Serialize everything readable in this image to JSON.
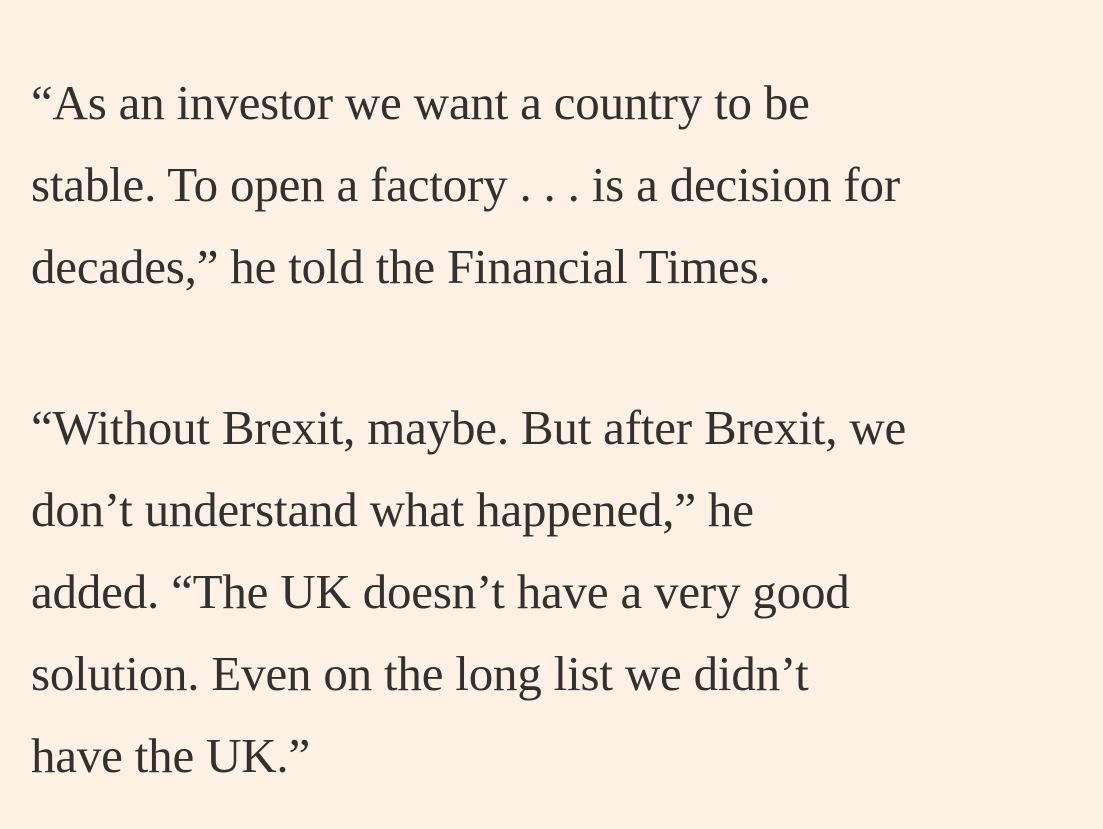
{
  "article": {
    "paragraphs": [
      {
        "lines": [
          "“As an investor we want a country to be",
          "stable. To open a factory . . . is a decision for",
          "decades,” he told the Financial Times."
        ]
      },
      {
        "lines": [
          "“Without Brexit, maybe. But after Brexit, we",
          "don’t understand what happened,” he",
          "added. “The UK doesn’t have a very good",
          "solution. Even on the long list we didn’t",
          "have the UK.”"
        ]
      }
    ]
  },
  "colors": {
    "background": "#fdf1e6",
    "text": "#33302e"
  }
}
